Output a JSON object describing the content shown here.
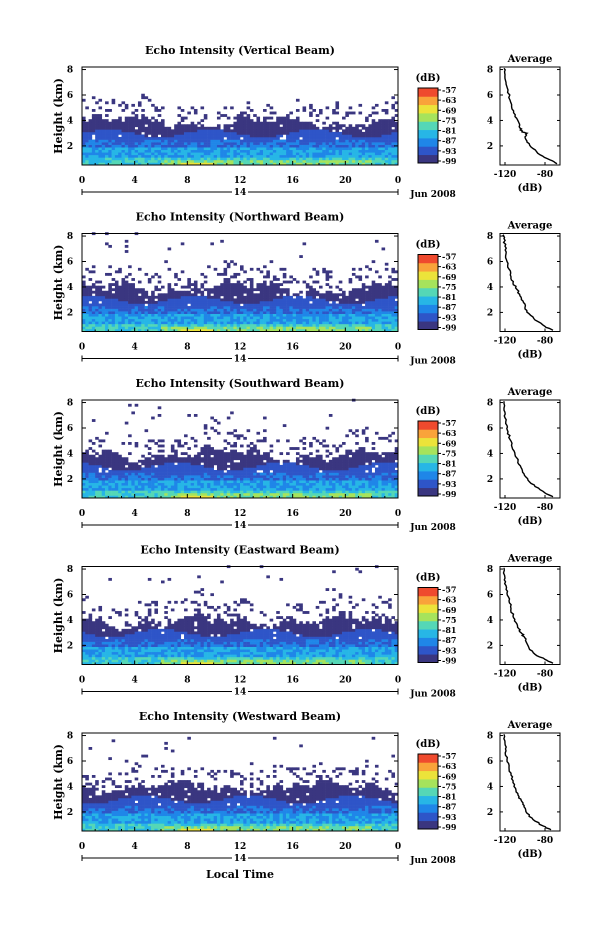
{
  "figure": {
    "footer_label": "Local Time",
    "colors": {
      "background": "#ffffff",
      "colormap": [
        "#3a3680",
        "#2e55c8",
        "#1f86e8",
        "#27b6e6",
        "#55d7b6",
        "#a6e35c",
        "#ece33a",
        "#f9a33a",
        "#ef4a2e"
      ]
    }
  },
  "chart_data": [
    {
      "type": "heatmap",
      "title": "Echo Intensity (Vertical Beam)",
      "ylabel": "Height (km)",
      "xlabel": "",
      "x_ticks": [
        "0",
        "4",
        "8",
        "12",
        "16",
        "20",
        "0"
      ],
      "xlim": [
        0,
        24
      ],
      "y_ticks": [
        "2",
        "4",
        "6",
        "8"
      ],
      "ylim": [
        0.5,
        8.2
      ],
      "date_center": "14",
      "date_label": "Jun 2008",
      "colorbar": {
        "label": "(dB)",
        "ticks": [
          "-57",
          "-63",
          "-69",
          "-75",
          "-81",
          "-87",
          "-93",
          "-99"
        ]
      },
      "profile": {
        "title": "Average",
        "xlabel": "(dB)",
        "x_ticks": [
          "-120",
          "-80"
        ],
        "xlim": [
          -125,
          -65
        ],
        "y_ticks": [
          "2",
          "4",
          "6",
          "8"
        ],
        "ylim": [
          0.5,
          8.2
        ],
        "points": [
          [
            -68,
            0.6
          ],
          [
            -75,
            0.9
          ],
          [
            -85,
            1.3
          ],
          [
            -92,
            1.8
          ],
          [
            -98,
            2.3
          ],
          [
            -100,
            2.7
          ],
          [
            -98,
            3.0
          ],
          [
            -103,
            3.1
          ],
          [
            -105,
            3.4
          ],
          [
            -106,
            3.8
          ],
          [
            -110,
            4.3
          ],
          [
            -113,
            4.9
          ],
          [
            -115,
            5.6
          ],
          [
            -117,
            6.4
          ],
          [
            -119,
            7.0
          ],
          [
            -120,
            7.6
          ],
          [
            -121,
            8.1
          ]
        ]
      }
    },
    {
      "type": "heatmap",
      "title": "Echo Intensity (Northward Beam)",
      "ylabel": "Height (km)",
      "xlabel": "",
      "x_ticks": [
        "0",
        "4",
        "8",
        "12",
        "16",
        "20",
        "0"
      ],
      "xlim": [
        0,
        24
      ],
      "y_ticks": [
        "2",
        "4",
        "6",
        "8"
      ],
      "ylim": [
        0.5,
        8.2
      ],
      "date_center": "14",
      "date_label": "Jun 2008",
      "colorbar": {
        "label": "(dB)",
        "ticks": [
          "-57",
          "-63",
          "-69",
          "-75",
          "-81",
          "-87",
          "-93",
          "-99"
        ]
      },
      "profile": {
        "title": "Average",
        "xlabel": "(dB)",
        "x_ticks": [
          "-120",
          "-80"
        ],
        "xlim": [
          -125,
          -65
        ],
        "y_ticks": [
          "2",
          "4",
          "6",
          "8"
        ],
        "ylim": [
          0.5,
          8.2
        ],
        "points": [
          [
            -72,
            0.6
          ],
          [
            -80,
            0.9
          ],
          [
            -90,
            1.4
          ],
          [
            -96,
            1.9
          ],
          [
            -100,
            2.4
          ],
          [
            -102,
            2.9
          ],
          [
            -105,
            3.3
          ],
          [
            -108,
            3.8
          ],
          [
            -112,
            4.3
          ],
          [
            -114,
            4.8
          ],
          [
            -116,
            5.4
          ],
          [
            -118,
            6.0
          ],
          [
            -119,
            6.6
          ],
          [
            -120,
            7.2
          ],
          [
            -121,
            7.8
          ],
          [
            -121,
            8.1
          ]
        ]
      }
    },
    {
      "type": "heatmap",
      "title": "Echo Intensity (Southward Beam)",
      "ylabel": "Height (km)",
      "xlabel": "",
      "x_ticks": [
        "0",
        "4",
        "8",
        "12",
        "16",
        "20",
        "0"
      ],
      "xlim": [
        0,
        24
      ],
      "y_ticks": [
        "2",
        "4",
        "6",
        "8"
      ],
      "ylim": [
        0.5,
        8.2
      ],
      "date_center": "14",
      "date_label": "Jun 2008",
      "colorbar": {
        "label": "(dB)",
        "ticks": [
          "-57",
          "-63",
          "-69",
          "-75",
          "-81",
          "-87",
          "-93",
          "-99"
        ]
      },
      "profile": {
        "title": "Average",
        "xlabel": "(dB)",
        "x_ticks": [
          "-120",
          "-80"
        ],
        "xlim": [
          -125,
          -65
        ],
        "y_ticks": [
          "2",
          "4",
          "6",
          "8"
        ],
        "ylim": [
          0.5,
          8.2
        ],
        "points": [
          [
            -72,
            0.6
          ],
          [
            -80,
            0.9
          ],
          [
            -90,
            1.4
          ],
          [
            -97,
            1.9
          ],
          [
            -101,
            2.4
          ],
          [
            -104,
            2.9
          ],
          [
            -107,
            3.4
          ],
          [
            -110,
            3.9
          ],
          [
            -113,
            4.5
          ],
          [
            -115,
            5.1
          ],
          [
            -117,
            5.7
          ],
          [
            -118,
            6.2
          ],
          [
            -120,
            6.8
          ],
          [
            -121,
            7.4
          ],
          [
            -121,
            8.1
          ]
        ]
      }
    },
    {
      "type": "heatmap",
      "title": "Echo Intensity (Eastward Beam)",
      "ylabel": "Height (km)",
      "xlabel": "",
      "x_ticks": [
        "0",
        "4",
        "8",
        "12",
        "16",
        "20",
        "0"
      ],
      "xlim": [
        0,
        24
      ],
      "y_ticks": [
        "2",
        "4",
        "6",
        "8"
      ],
      "ylim": [
        0.5,
        8.2
      ],
      "date_center": "14",
      "date_label": "Jun 2008",
      "colorbar": {
        "label": "(dB)",
        "ticks": [
          "-57",
          "-63",
          "-69",
          "-75",
          "-81",
          "-87",
          "-93",
          "-99"
        ]
      },
      "profile": {
        "title": "Average",
        "xlabel": "(dB)",
        "x_ticks": [
          "-120",
          "-80"
        ],
        "xlim": [
          -125,
          -65
        ],
        "y_ticks": [
          "2",
          "4",
          "6",
          "8"
        ],
        "ylim": [
          0.5,
          8.2
        ],
        "points": [
          [
            -72,
            0.6
          ],
          [
            -80,
            0.9
          ],
          [
            -90,
            1.3
          ],
          [
            -96,
            1.8
          ],
          [
            -99,
            2.3
          ],
          [
            -101,
            2.7
          ],
          [
            -104,
            3.0
          ],
          [
            -106,
            3.3
          ],
          [
            -109,
            3.8
          ],
          [
            -112,
            4.3
          ],
          [
            -114,
            4.9
          ],
          [
            -116,
            5.5
          ],
          [
            -118,
            6.1
          ],
          [
            -119,
            6.7
          ],
          [
            -120,
            7.3
          ],
          [
            -121,
            8.1
          ]
        ]
      }
    },
    {
      "type": "heatmap",
      "title": "Echo Intensity (Westward Beam)",
      "ylabel": "Height (km)",
      "xlabel": "",
      "x_ticks": [
        "0",
        "4",
        "8",
        "12",
        "16",
        "20",
        "0"
      ],
      "xlim": [
        0,
        24
      ],
      "y_ticks": [
        "2",
        "4",
        "6",
        "8"
      ],
      "ylim": [
        0.5,
        8.2
      ],
      "date_center": "14",
      "date_label": "Jun 2008",
      "colorbar": {
        "label": "(dB)",
        "ticks": [
          "-57",
          "-63",
          "-69",
          "-75",
          "-81",
          "-87",
          "-93",
          "-99"
        ]
      },
      "profile": {
        "title": "Average",
        "xlabel": "(dB)",
        "x_ticks": [
          "-120",
          "-80"
        ],
        "xlim": [
          -125,
          -65
        ],
        "y_ticks": [
          "2",
          "4",
          "6",
          "8"
        ],
        "ylim": [
          0.5,
          8.2
        ],
        "points": [
          [
            -74,
            0.6
          ],
          [
            -82,
            0.9
          ],
          [
            -92,
            1.4
          ],
          [
            -98,
            1.9
          ],
          [
            -101,
            2.4
          ],
          [
            -103,
            2.8
          ],
          [
            -106,
            3.2
          ],
          [
            -109,
            3.7
          ],
          [
            -112,
            4.3
          ],
          [
            -114,
            4.9
          ],
          [
            -116,
            5.5
          ],
          [
            -118,
            6.1
          ],
          [
            -119,
            6.8
          ],
          [
            -120,
            7.4
          ],
          [
            -121,
            8.1
          ]
        ]
      }
    }
  ]
}
